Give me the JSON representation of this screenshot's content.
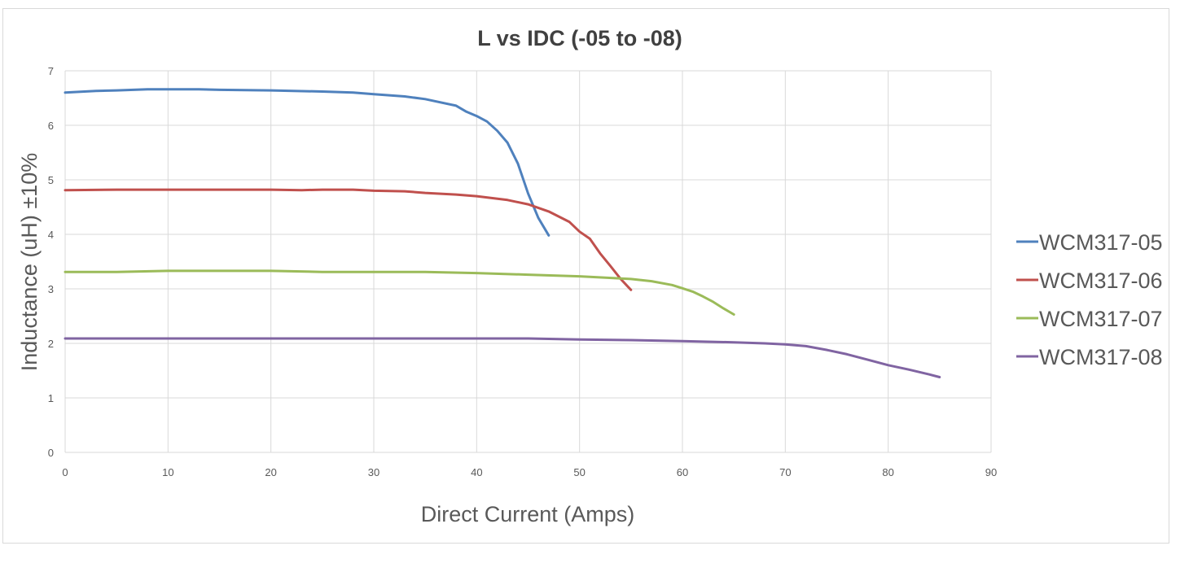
{
  "chart_data": {
    "type": "line",
    "title": "L vs IDC (-05 to -08)",
    "xlabel": "Direct Current (Amps)",
    "ylabel": "Inductance (uH) ±10%",
    "xlim": [
      0,
      90
    ],
    "ylim": [
      0,
      7
    ],
    "x_ticks": [
      0,
      10,
      20,
      30,
      40,
      50,
      60,
      70,
      80,
      90
    ],
    "y_ticks": [
      0,
      1,
      2,
      3,
      4,
      5,
      6,
      7
    ],
    "grid": true,
    "legend_position": "right",
    "series": [
      {
        "name": "WCM317-05",
        "color": "#4f81bd",
        "points": [
          [
            0,
            6.6
          ],
          [
            3,
            6.63
          ],
          [
            5,
            6.64
          ],
          [
            8,
            6.66
          ],
          [
            10,
            6.66
          ],
          [
            13,
            6.66
          ],
          [
            15,
            6.65
          ],
          [
            20,
            6.64
          ],
          [
            25,
            6.62
          ],
          [
            28,
            6.6
          ],
          [
            30,
            6.57
          ],
          [
            33,
            6.53
          ],
          [
            35,
            6.48
          ],
          [
            38,
            6.36
          ],
          [
            39,
            6.25
          ],
          [
            40,
            6.17
          ],
          [
            41,
            6.07
          ],
          [
            42,
            5.9
          ],
          [
            43,
            5.68
          ],
          [
            44,
            5.3
          ],
          [
            45,
            4.75
          ],
          [
            46,
            4.3
          ],
          [
            47,
            3.98
          ]
        ]
      },
      {
        "name": "WCM317-06",
        "color": "#c0504d",
        "points": [
          [
            0,
            4.81
          ],
          [
            5,
            4.82
          ],
          [
            10,
            4.82
          ],
          [
            15,
            4.82
          ],
          [
            20,
            4.82
          ],
          [
            23,
            4.81
          ],
          [
            25,
            4.82
          ],
          [
            28,
            4.82
          ],
          [
            30,
            4.8
          ],
          [
            33,
            4.79
          ],
          [
            35,
            4.76
          ],
          [
            38,
            4.73
          ],
          [
            40,
            4.7
          ],
          [
            43,
            4.63
          ],
          [
            45,
            4.55
          ],
          [
            47,
            4.42
          ],
          [
            49,
            4.23
          ],
          [
            50,
            4.05
          ],
          [
            51,
            3.92
          ],
          [
            52,
            3.65
          ],
          [
            53,
            3.42
          ],
          [
            54,
            3.18
          ],
          [
            55,
            2.98
          ]
        ]
      },
      {
        "name": "WCM317-07",
        "color": "#9bbb59",
        "points": [
          [
            0,
            3.31
          ],
          [
            5,
            3.31
          ],
          [
            10,
            3.33
          ],
          [
            15,
            3.33
          ],
          [
            20,
            3.33
          ],
          [
            25,
            3.31
          ],
          [
            30,
            3.31
          ],
          [
            35,
            3.31
          ],
          [
            40,
            3.29
          ],
          [
            45,
            3.26
          ],
          [
            50,
            3.23
          ],
          [
            55,
            3.18
          ],
          [
            57,
            3.14
          ],
          [
            59,
            3.07
          ],
          [
            60,
            3.01
          ],
          [
            61,
            2.95
          ],
          [
            62,
            2.86
          ],
          [
            63,
            2.76
          ],
          [
            64,
            2.64
          ],
          [
            65,
            2.53
          ]
        ]
      },
      {
        "name": "WCM317-08",
        "color": "#8064a2",
        "points": [
          [
            0,
            2.09
          ],
          [
            10,
            2.09
          ],
          [
            20,
            2.09
          ],
          [
            30,
            2.09
          ],
          [
            40,
            2.09
          ],
          [
            45,
            2.09
          ],
          [
            50,
            2.07
          ],
          [
            55,
            2.06
          ],
          [
            60,
            2.04
          ],
          [
            65,
            2.02
          ],
          [
            68,
            2.0
          ],
          [
            70,
            1.98
          ],
          [
            72,
            1.95
          ],
          [
            74,
            1.88
          ],
          [
            76,
            1.8
          ],
          [
            78,
            1.7
          ],
          [
            80,
            1.6
          ],
          [
            82,
            1.52
          ],
          [
            84,
            1.43
          ],
          [
            85,
            1.38
          ]
        ]
      }
    ]
  }
}
